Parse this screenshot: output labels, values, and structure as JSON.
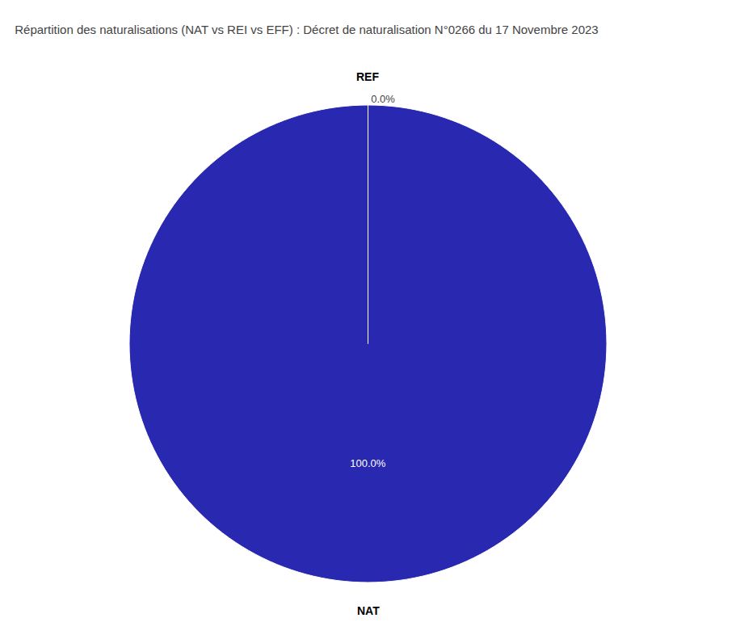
{
  "chart_data": {
    "type": "pie",
    "title": "Répartition des naturalisations (NAT vs REI vs EFF) : Décret de naturalisation N°0266 du 17 Novembre 2023",
    "categories": [
      "REF",
      "NAT"
    ],
    "values": [
      0.0001,
      99.9999
    ],
    "value_labels": [
      "0.0%",
      "100.0%"
    ],
    "colors": [
      "#8B4513",
      "#2828B0"
    ]
  }
}
